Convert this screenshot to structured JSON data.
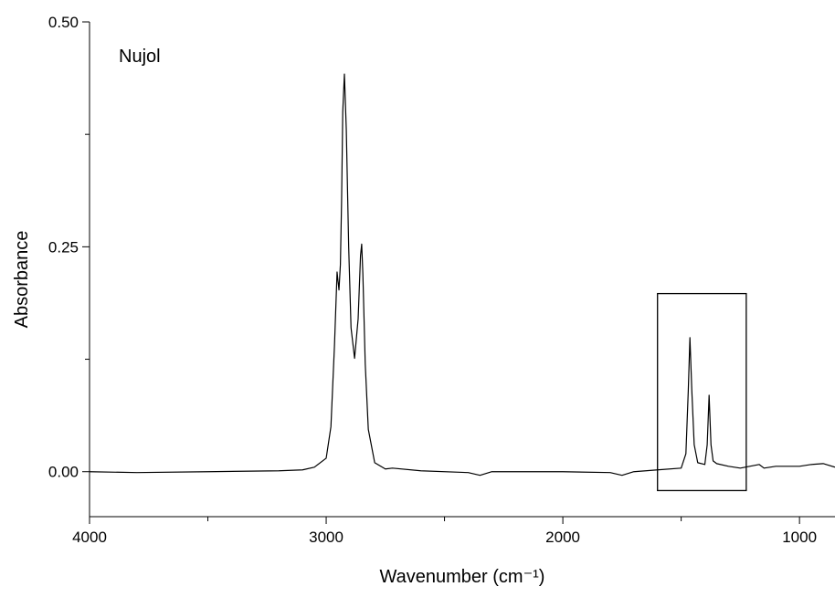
{
  "chart_data": {
    "type": "line",
    "annotation": "Nujol",
    "xlabel": "Wavenumber (cm⁻¹)",
    "ylabel": "Absorbance",
    "xlim": [
      4000,
      850
    ],
    "ylim": [
      -0.05,
      0.5
    ],
    "xticks": [
      4000,
      3000,
      2000,
      1000
    ],
    "xminor_ticks": [
      3500,
      2500,
      1500
    ],
    "yticks": [
      {
        "value": 0,
        "label": "0.00"
      },
      {
        "value": 0.25,
        "label": "0.25"
      },
      {
        "value": 0.5,
        "label": "0.50"
      }
    ],
    "yminor_ticks": [
      0.125,
      0.375
    ],
    "highlight_box": {
      "x": [
        1600,
        1225
      ],
      "y": [
        -0.021,
        0.198
      ]
    },
    "x": [
      4000,
      3800,
      3500,
      3200,
      3100,
      3050,
      3000,
      2980,
      2965,
      2954,
      2946,
      2940,
      2935,
      2930,
      2923,
      2915,
      2905,
      2895,
      2880,
      2865,
      2855,
      2850,
      2845,
      2835,
      2822,
      2795,
      2750,
      2720,
      2600,
      2400,
      2350,
      2300,
      2000,
      1800,
      1750,
      1700,
      1600,
      1500,
      1480,
      1470,
      1463,
      1455,
      1445,
      1430,
      1400,
      1390,
      1382,
      1374,
      1365,
      1350,
      1300,
      1250,
      1170,
      1150,
      1100,
      1000,
      950,
      900,
      850
    ],
    "series": [
      {
        "name": "Nujol",
        "color": "#000000",
        "values": [
          0.0,
          -0.001,
          0.0,
          0.001,
          0.002,
          0.005,
          0.015,
          0.05,
          0.14,
          0.222,
          0.202,
          0.23,
          0.3,
          0.4,
          0.442,
          0.38,
          0.25,
          0.16,
          0.126,
          0.17,
          0.24,
          0.253,
          0.22,
          0.12,
          0.047,
          0.01,
          0.003,
          0.004,
          0.001,
          -0.001,
          -0.004,
          0.0,
          0.0,
          -0.001,
          -0.004,
          0.0,
          0.002,
          0.004,
          0.02,
          0.09,
          0.149,
          0.09,
          0.03,
          0.01,
          0.008,
          0.03,
          0.085,
          0.03,
          0.012,
          0.009,
          0.006,
          0.004,
          0.008,
          0.004,
          0.006,
          0.006,
          0.008,
          0.009,
          0.005
        ]
      }
    ]
  }
}
